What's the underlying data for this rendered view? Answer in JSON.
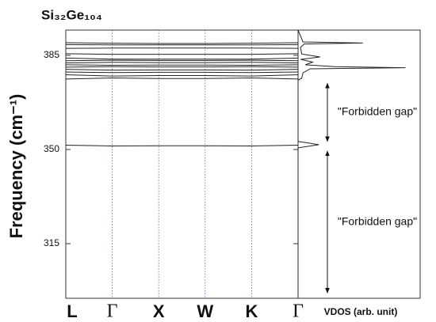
{
  "chart_data": [
    {
      "type": "line",
      "title": "Si₃₂Ge₁₀₄",
      "ylabel": "Frequency (cm⁻¹)",
      "categories": [
        "L",
        "Γ",
        "X",
        "W",
        "K",
        "Γ"
      ],
      "color": "#222",
      "ylim": [
        294.7,
        394.4
      ],
      "yticks": [
        315,
        350,
        385
      ],
      "series": [
        {
          "values": [
            389.7,
            389.5,
            389.4,
            389.4,
            389.5,
            389.7
          ]
        },
        {
          "values": [
            389.0,
            388.9,
            388.9,
            388.9,
            388.9,
            389.0
          ]
        },
        {
          "values": [
            387.6,
            387.7,
            387.7,
            387.7,
            387.7,
            387.6
          ]
        },
        {
          "values": [
            385.6,
            385.4,
            385.4,
            385.4,
            385.4,
            385.6
          ]
        },
        {
          "values": [
            384.0,
            383.6,
            383.6,
            383.6,
            383.6,
            384.0
          ]
        },
        {
          "values": [
            383.0,
            383.2,
            383.1,
            383.1,
            383.2,
            383.0
          ]
        },
        {
          "values": [
            382.2,
            382.4,
            382.3,
            382.3,
            382.4,
            382.2
          ]
        },
        {
          "values": [
            381.5,
            381.3,
            381.4,
            381.4,
            381.3,
            381.5
          ]
        },
        {
          "values": [
            380.6,
            380.8,
            380.7,
            380.7,
            380.8,
            380.6
          ]
        },
        {
          "values": [
            379.8,
            379.5,
            379.6,
            379.6,
            379.5,
            379.8
          ]
        },
        {
          "values": [
            378.8,
            378.6,
            378.7,
            378.7,
            378.6,
            378.8
          ]
        },
        {
          "values": [
            377.8,
            377.3,
            377.5,
            377.5,
            377.3,
            377.8
          ]
        },
        {
          "values": [
            376.2,
            376.6,
            376.4,
            376.4,
            376.6,
            376.2
          ]
        },
        {
          "values": [
            351.6,
            351.3,
            351.4,
            351.4,
            351.3,
            351.6
          ]
        }
      ]
    },
    {
      "type": "vdos",
      "xlabel": "VDOS (arb. unit)",
      "color": "#222",
      "xlim": [
        0,
        1
      ],
      "ylim": [
        294.7,
        394.4
      ],
      "frequency": [
        394.4,
        390.0,
        389.6,
        389.2,
        388.0,
        385.5,
        384.4,
        383.5,
        382.5,
        381.5,
        380.8,
        380.4,
        380.0,
        378.5,
        376.5,
        375.8,
        353.0,
        351.8,
        350.6,
        295.0
      ],
      "dos": [
        0,
        0.04,
        0.53,
        0.05,
        0.02,
        0.03,
        0.18,
        0.02,
        0.12,
        0.06,
        0.3,
        0.88,
        0.1,
        0.04,
        0.03,
        0,
        0,
        0.17,
        0,
        0
      ],
      "annotations": [
        {
          "text": "\"Forbidden gap\"",
          "range": [
            351.8,
            375.8
          ]
        },
        {
          "text": "\"Forbidden gap\"",
          "range": [
            295.5,
            350.6
          ]
        }
      ]
    }
  ]
}
